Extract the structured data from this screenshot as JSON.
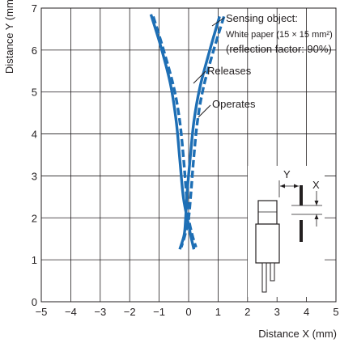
{
  "chart_data": {
    "type": "line",
    "xlabel": "Distance X (mm)",
    "ylabel": "Distance Y (mm)",
    "xlim": [
      -5,
      5
    ],
    "ylim": [
      0,
      7
    ],
    "x_ticks": [
      "−5",
      "−4",
      "−3",
      "−2",
      "−1",
      "0",
      "1",
      "2",
      "3",
      "4",
      "5"
    ],
    "y_ticks": [
      "0",
      "1",
      "2",
      "3",
      "4",
      "5",
      "6",
      "7"
    ],
    "grid": true,
    "series_color": "#1e6fb5",
    "series": [
      {
        "name": "Operates",
        "style": "dashed",
        "branches": [
          [
            [
              -1.2,
              6.8
            ],
            [
              -0.85,
              6.0
            ],
            [
              -0.5,
              5.1
            ],
            [
              -0.3,
              4.3
            ],
            [
              -0.17,
              3.4
            ],
            [
              -0.08,
              2.6
            ],
            [
              0.0,
              2.0
            ],
            [
              0.12,
              1.6
            ],
            [
              0.25,
              1.3
            ]
          ],
          [
            [
              1.2,
              6.8
            ],
            [
              0.85,
              6.0
            ],
            [
              0.5,
              5.1
            ],
            [
              0.3,
              4.3
            ],
            [
              0.17,
              3.4
            ],
            [
              0.08,
              2.6
            ],
            [
              0.0,
              2.0
            ],
            [
              -0.12,
              1.6
            ],
            [
              -0.25,
              1.3
            ]
          ]
        ]
      },
      {
        "name": "Releases",
        "style": "solid",
        "branches": [
          [
            [
              -1.28,
              6.85
            ],
            [
              -0.95,
              6.1
            ],
            [
              -0.62,
              5.2
            ],
            [
              -0.42,
              4.3
            ],
            [
              -0.3,
              3.4
            ],
            [
              -0.18,
              2.5
            ],
            [
              -0.02,
              1.9
            ],
            [
              0.08,
              1.55
            ],
            [
              0.18,
              1.25
            ]
          ],
          [
            [
              1.05,
              6.8
            ],
            [
              0.72,
              6.0
            ],
            [
              0.38,
              5.1
            ],
            [
              0.18,
              4.3
            ],
            [
              0.05,
              3.4
            ],
            [
              -0.05,
              2.6
            ],
            [
              -0.1,
              2.0
            ],
            [
              -0.15,
              1.6
            ],
            [
              -0.3,
              1.25
            ]
          ]
        ]
      }
    ],
    "annotations": {
      "sensing_object_title": "Sensing object:",
      "sensing_object_material": "White paper (15 × 15 mm²)",
      "sensing_object_reflection": "(reflection factor: 90%)",
      "releases_label": "Releases",
      "operates_label": "Operates",
      "inset_y_label": "Y",
      "inset_x_label": "X"
    }
  }
}
